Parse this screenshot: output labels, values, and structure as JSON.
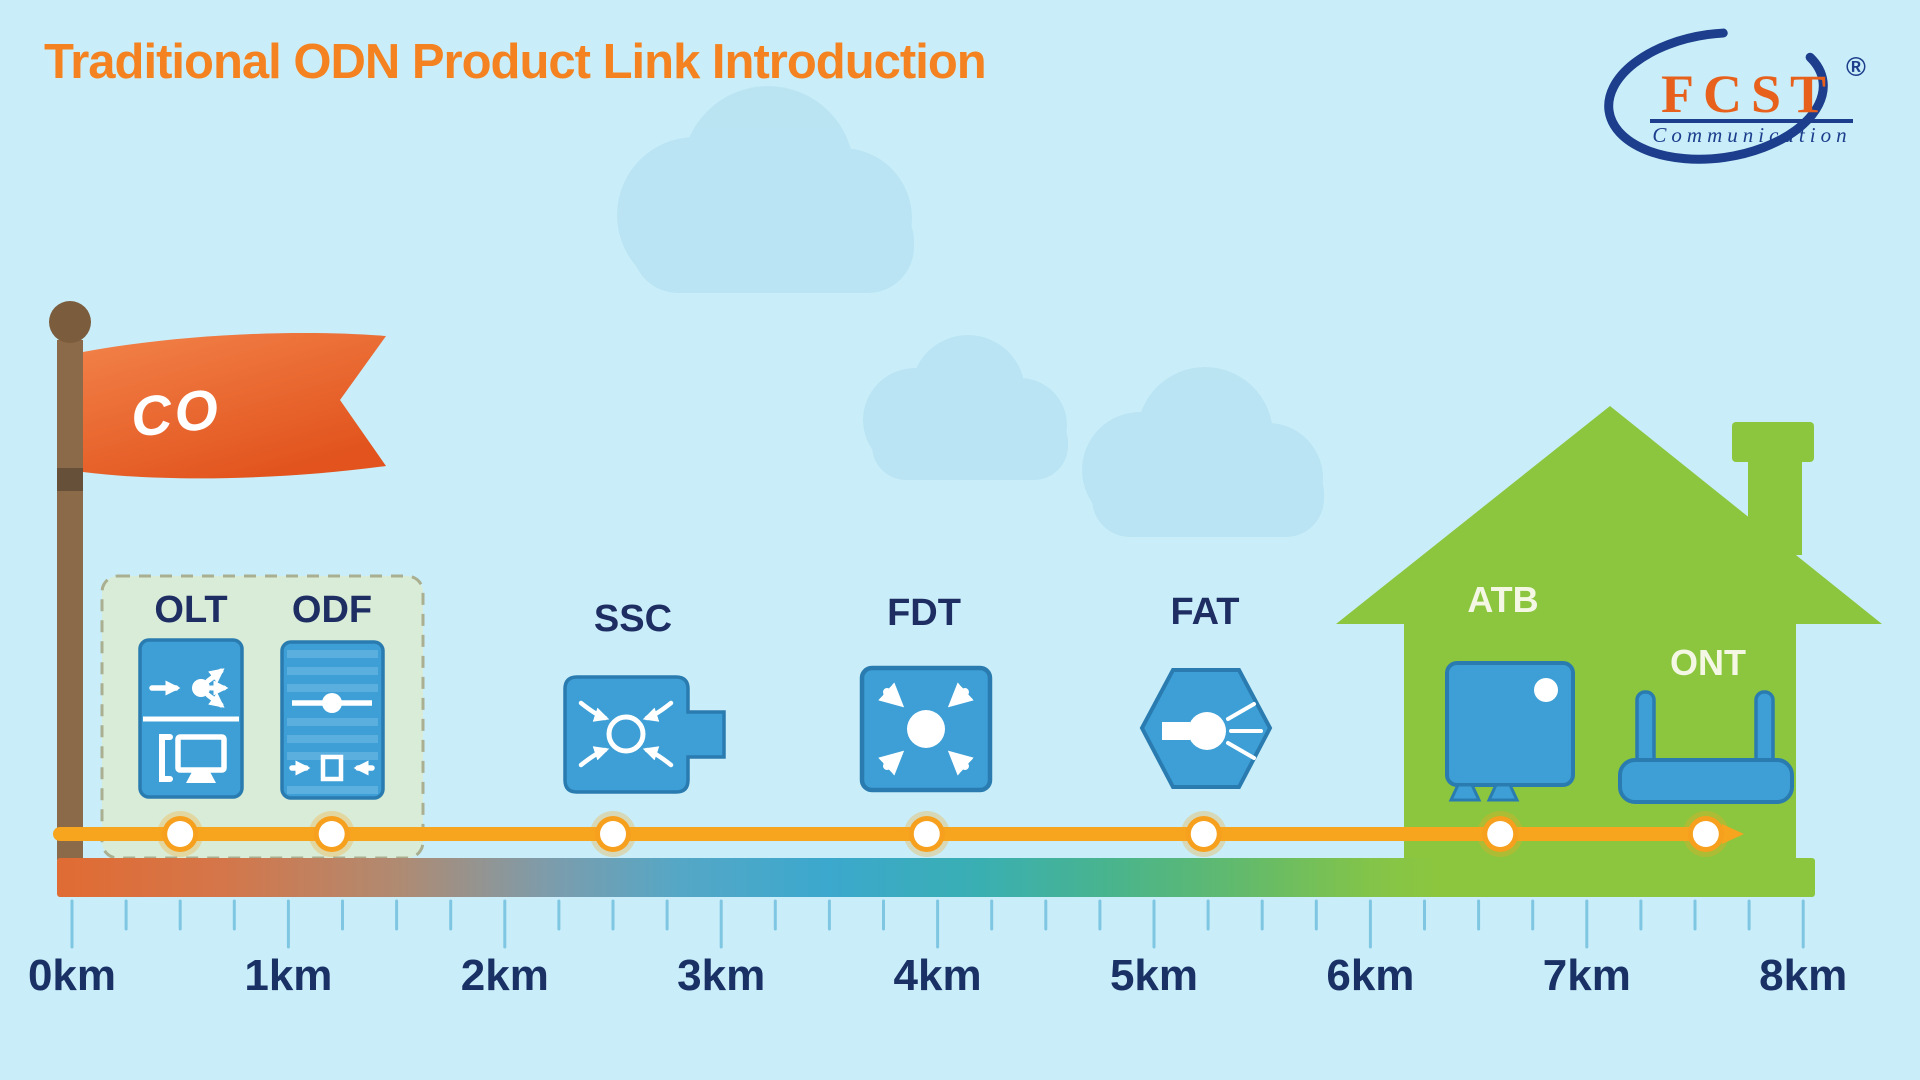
{
  "title": {
    "text": "Traditional ODN Product Link Introduction"
  },
  "logo": {
    "name": "FCST",
    "subtitle": "Communication",
    "registered": "®"
  },
  "flag": {
    "label": "CO"
  },
  "link": {
    "devices": [
      {
        "id": "olt",
        "label": "OLT",
        "km": 0.5
      },
      {
        "id": "odf",
        "label": "ODF",
        "km": 1.2
      },
      {
        "id": "ssc",
        "label": "SSC",
        "km": 2.5
      },
      {
        "id": "fdt",
        "label": "FDT",
        "km": 3.95
      },
      {
        "id": "fat",
        "label": "FAT",
        "km": 5.23
      },
      {
        "id": "atb",
        "label": "ATB",
        "km": 6.6
      },
      {
        "id": "ont",
        "label": "ONT",
        "km": 7.55
      }
    ]
  },
  "axis": {
    "unit": "km",
    "min": 0,
    "max": 8,
    "minor_step": 0.25,
    "labels": [
      "0km",
      "1km",
      "2km",
      "3km",
      "4km",
      "5km",
      "6km",
      "7km",
      "8km"
    ],
    "gradient": [
      {
        "km": 0,
        "color": "#e06c35"
      },
      {
        "km": 0.7,
        "color": "#d4764a"
      },
      {
        "km": 1.5,
        "color": "#b08a71"
      },
      {
        "km": 2.2,
        "color": "#7d9cab"
      },
      {
        "km": 2.8,
        "color": "#55a7c6"
      },
      {
        "km": 3.5,
        "color": "#3ba8cd"
      },
      {
        "km": 4.2,
        "color": "#3aafb2"
      },
      {
        "km": 4.8,
        "color": "#49b48d"
      },
      {
        "km": 5.4,
        "color": "#62ba6c"
      },
      {
        "km": 6.0,
        "color": "#83c449"
      },
      {
        "km": 6.3,
        "color": "#8cc63f"
      },
      {
        "km": 8,
        "color": "#8cc63f"
      }
    ]
  },
  "colors": {
    "sky": "#c9eef9",
    "cloud": "#aeddef",
    "title_orange": "#f58220",
    "label_navy": "#1e2e63",
    "axis_label_navy": "#1a3166",
    "icon_blue": "#3d9fd6",
    "icon_border": "#2a7cb0",
    "house_green": "#8cc63f",
    "fiber_line_orange": "#f7a41f",
    "node_white": "#ffffff",
    "flag_orange": "#ee6a2e",
    "pole_brown": "#8a6a48",
    "tick_blue": "#7fc6e2",
    "logo_navy": "#1c3e8c",
    "logo_orange": "#e8611c",
    "co_box_fill": "#dcebd2"
  }
}
